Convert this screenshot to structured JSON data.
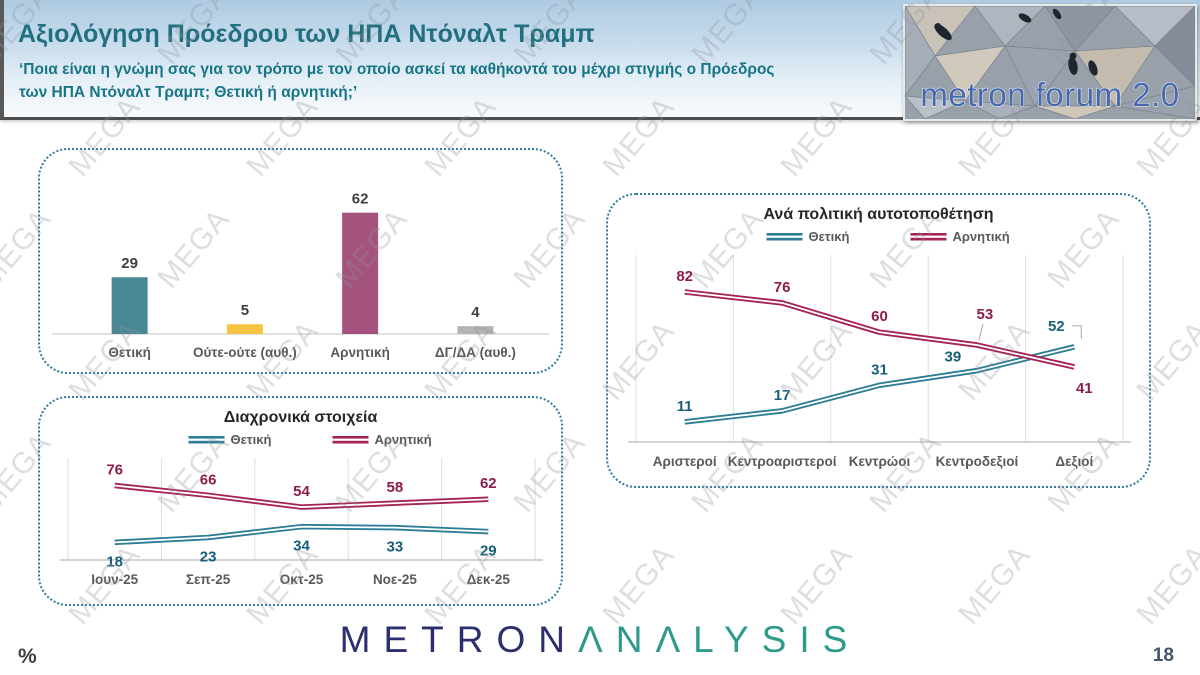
{
  "header": {
    "title": "Αξιολόγηση Πρόεδρου των ΗΠΑ Ντόναλτ Τραμπ",
    "subtitle_line1": "‘Ποια είναι η γνώμη σας για τον τρόπο με τον οποίο ασκεί τα καθήκοντά του μέχρι στιγμής ο Πρόεδρος",
    "subtitle_line2": "των ΗΠΑ Ντόναλτ Τραμπ; Θετική ή αρνητική;’",
    "logo_text": "metron forum 2.0"
  },
  "watermark": {
    "text": "MEGA"
  },
  "footer": {
    "logo_metron": "METRON",
    "logo_analysis": "ΛNΛLYSIS",
    "percent_label": "%",
    "page_number": "18"
  },
  "colors": {
    "positive_teal": "#2c7d95",
    "negative_crimson": "#a52257",
    "bar_teal": "#4a8795",
    "bar_yellow": "#f6c343",
    "bar_magenta": "#a3537d",
    "bar_gray": "#b3b3b3",
    "panel_border": "#2e7d9e",
    "title_teal": "#22707f"
  },
  "chart_data": [
    {
      "id": "bar_overall",
      "type": "bar",
      "categories": [
        "Θετική",
        "Ούτε-ούτε (αυθ.)",
        "Αρνητική",
        "ΔΓ/ΔΑ (αυθ.)"
      ],
      "values": [
        29,
        5,
        62,
        4
      ],
      "bar_colors": [
        "#4a8795",
        "#f6c343",
        "#a3537d",
        "#b3b3b3"
      ],
      "title": "",
      "xlabel": "",
      "ylabel": "",
      "ylim": [
        0,
        70
      ],
      "grid": "off",
      "data_labels": "above bars"
    },
    {
      "id": "line_timeline",
      "type": "line",
      "title": "Διαχρονικά στοιχεία",
      "categories": [
        "Ιουν-25",
        "Σεπ-25",
        "Οκτ-25",
        "Νοε-25",
        "Δεκ-25"
      ],
      "series": [
        {
          "name": "Θετική",
          "color": "#2c7d95",
          "label_color": "#175e79",
          "values": [
            18,
            23,
            34,
            33,
            29
          ],
          "label_side": "below",
          "label_overrides": {}
        },
        {
          "name": "Αρνητική",
          "color": "#a52257",
          "label_color": "#8e1c4c",
          "values": [
            76,
            66,
            54,
            58,
            62
          ],
          "label_side": "above",
          "label_overrides": {}
        }
      ],
      "xlabel": "",
      "ylabel": "",
      "ylim": [
        0,
        100
      ],
      "legend_position": "top",
      "grid": "vertical"
    },
    {
      "id": "line_political",
      "type": "line",
      "title": "Ανά πολιτική αυτοτοποθέτηση",
      "categories": [
        "Αριστεροί",
        "Κεντροαριστεροί",
        "Κεντρώοι",
        "Κεντροδεξιοί",
        "Δεξιοί"
      ],
      "series": [
        {
          "name": "Θετική",
          "color": "#2c7d95",
          "label_color": "#175e79",
          "values": [
            11,
            17,
            31,
            39,
            52
          ],
          "label_side": "above",
          "label_overrides": {
            "3": {
              "dx": -24,
              "dy": -9
            },
            "4": {
              "dx": -18,
              "dy": -16,
              "leader": "elbow"
            }
          }
        },
        {
          "name": "Αρνητική",
          "color": "#a52257",
          "label_color": "#8e1c4c",
          "values": [
            82,
            76,
            60,
            53,
            41
          ],
          "label_side": "above",
          "label_overrides": {
            "3": {
              "dx": 8,
              "dy": -26,
              "leader": "line"
            },
            "4": {
              "dx": 10,
              "dy": 26
            }
          }
        }
      ],
      "xlabel": "",
      "ylabel": "",
      "ylim": [
        0,
        100
      ],
      "legend_position": "top",
      "grid": "vertical"
    }
  ]
}
